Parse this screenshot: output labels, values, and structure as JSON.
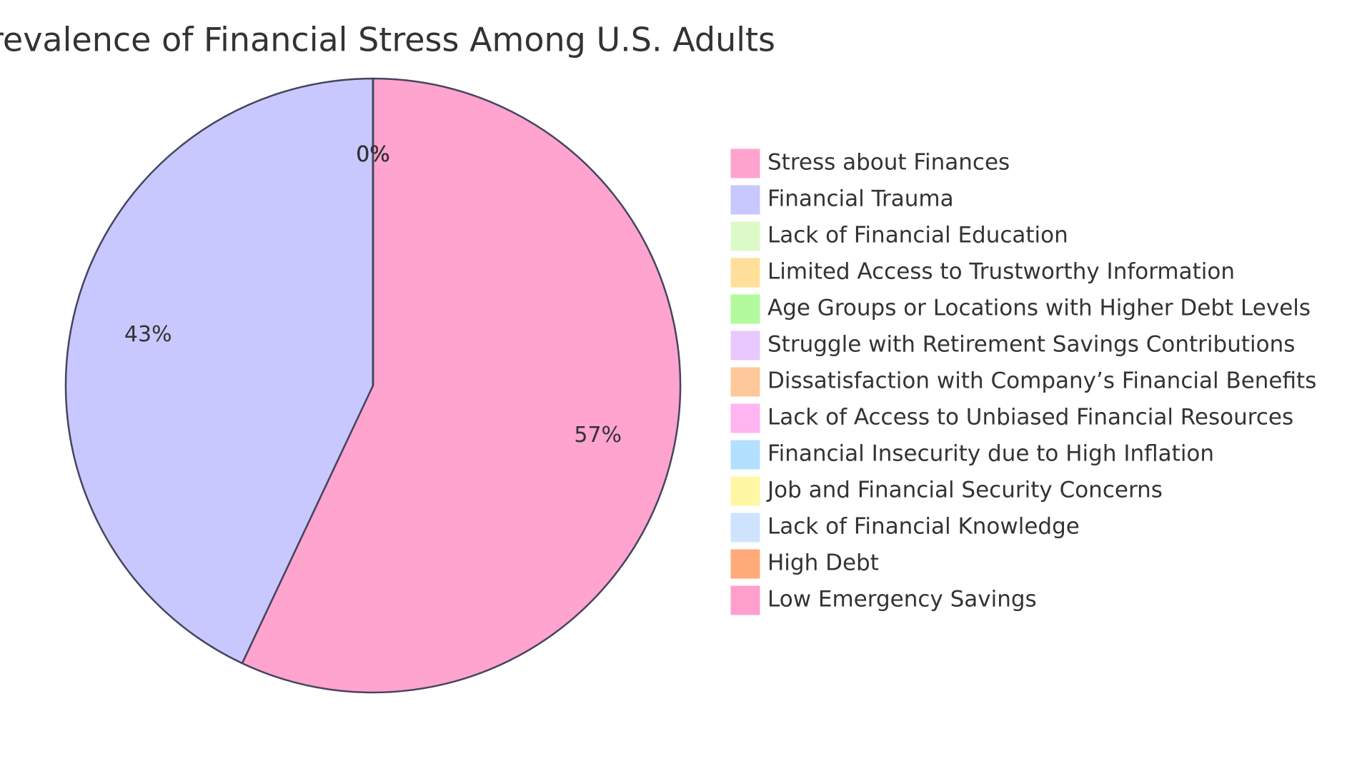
{
  "chart_data": {
    "type": "pie",
    "title": "Prevalence of Financial Stress Among U.S. Adults",
    "categories": [
      "Stress about Finances",
      "Financial Trauma",
      "Lack of Financial Education",
      "Limited Access to Trustworthy Information",
      "Age Groups or Locations with Higher Debt Levels",
      "Struggle with Retirement Savings Contributions",
      "Dissatisfaction with Company’s Financial Benefits",
      "Lack of Access to Unbiased Financial Resources",
      "Financial Insecurity due to High Inflation",
      "Job and Financial Security Concerns",
      "Lack of Financial Knowledge",
      "High Debt",
      "Low Emergency Savings"
    ],
    "values": [
      57,
      43,
      0,
      0,
      0,
      0,
      0,
      0,
      0,
      0,
      0,
      0,
      0
    ],
    "value_labels": [
      "57%",
      "43%",
      "0%",
      "0%",
      "0%",
      "0%",
      "0%",
      "0%",
      "0%",
      "0%",
      "0%",
      "0%",
      "0%"
    ],
    "colors": [
      "#ffa3cf",
      "#c8c8ff",
      "#dcfac8",
      "#ffdf9a",
      "#b3fa9e",
      "#e8c8ff",
      "#ffc89a",
      "#ffb6f0",
      "#b3e0ff",
      "#fff7a3",
      "#cfe3ff",
      "#ffaa78",
      "#ff9fcb"
    ],
    "legend": "right"
  }
}
